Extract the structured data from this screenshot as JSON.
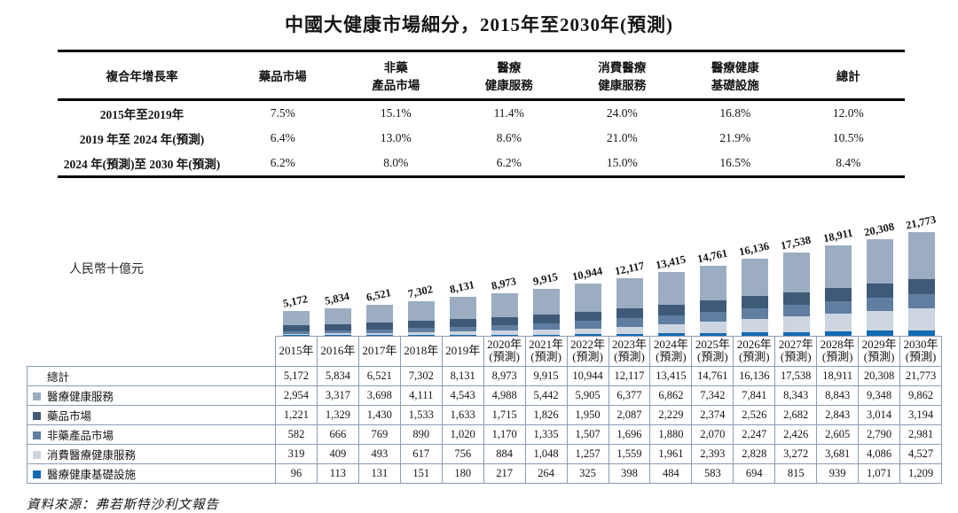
{
  "title": "中國大健康市場細分，2015年至2030年(預測)",
  "unit_label": "人民幣十億元",
  "source": "資料來源：弗若斯特沙利文報告",
  "cagr_table": {
    "headers": [
      "複合年增長率",
      "藥品市場",
      "非藥\n產品市場",
      "醫療\n健康服務",
      "消費醫療\n健康服務",
      "醫療健康\n基礎設施",
      "總計"
    ],
    "rows": [
      {
        "label": "2015年至2019年",
        "values": [
          "7.5%",
          "15.1%",
          "11.4%",
          "24.0%",
          "16.8%",
          "12.0%"
        ]
      },
      {
        "label": "2019 年至 2024 年(預測)",
        "values": [
          "6.4%",
          "13.0%",
          "8.6%",
          "21.0%",
          "21.9%",
          "10.5%"
        ]
      },
      {
        "label": "2024 年(預測)至 2030 年(預測)",
        "values": [
          "6.2%",
          "8.0%",
          "6.2%",
          "15.0%",
          "16.5%",
          "8.4%"
        ]
      }
    ]
  },
  "chart_data": {
    "type": "bar",
    "stacked": true,
    "title": "中國大健康市場細分，2015年至2030年(預測)",
    "ylabel": "人民幣十億元",
    "grid": false,
    "legend_position": "left-of-table-rows",
    "categories": [
      "2015年",
      "2016年",
      "2017年",
      "2018年",
      "2019年",
      "2020年(預測)",
      "2021年(預測)",
      "2022年(預測)",
      "2023年(預測)",
      "2024年(預測)",
      "2025年(預測)",
      "2026年(預測)",
      "2027年(預測)",
      "2028年(預測)",
      "2029年(預測)",
      "2030年(預測)"
    ],
    "total_label": "總計",
    "totals": [
      5172,
      5834,
      6521,
      7302,
      8131,
      8973,
      9915,
      10944,
      12117,
      13415,
      14761,
      16136,
      17538,
      18911,
      20308,
      21773
    ],
    "series": [
      {
        "id": "services",
        "name": "醫療健康服務",
        "color": "#9cadc2",
        "values": [
          2954,
          3317,
          3698,
          4111,
          4543,
          4988,
          5442,
          5905,
          6377,
          6862,
          7342,
          7841,
          8343,
          8843,
          9348,
          9862
        ]
      },
      {
        "id": "pharma",
        "name": "藥品市場",
        "color": "#3e5a78",
        "values": [
          1221,
          1329,
          1430,
          1533,
          1633,
          1715,
          1826,
          1950,
          2087,
          2229,
          2374,
          2526,
          2682,
          2843,
          3014,
          3194
        ]
      },
      {
        "id": "nonpharma",
        "name": "非藥產品市場",
        "color": "#5f7ea1",
        "values": [
          582,
          666,
          769,
          890,
          1020,
          1170,
          1335,
          1507,
          1696,
          1880,
          2070,
          2247,
          2426,
          2605,
          2790,
          2981
        ]
      },
      {
        "id": "consumer",
        "name": "消費醫療健康服務",
        "color": "#ccd5e0",
        "values": [
          319,
          409,
          493,
          617,
          756,
          884,
          1048,
          1257,
          1559,
          1961,
          2393,
          2828,
          3272,
          3681,
          4086,
          4527
        ]
      },
      {
        "id": "infra",
        "name": "醫療健康基礎設施",
        "color": "#146ab3",
        "values": [
          96,
          113,
          131,
          151,
          180,
          217,
          264,
          325,
          398,
          484,
          583,
          694,
          815,
          939,
          1071,
          1209
        ]
      }
    ],
    "stack_order": [
      "infra",
      "consumer",
      "nonpharma",
      "pharma",
      "services"
    ],
    "max_total": 21773
  }
}
